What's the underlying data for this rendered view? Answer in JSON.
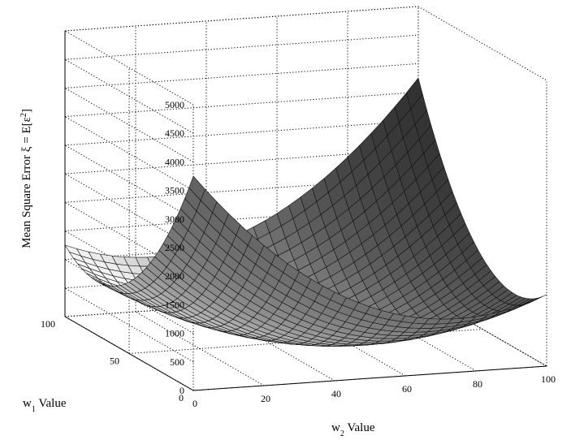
{
  "chart_data": {
    "type": "surface",
    "title": "",
    "xlabel": "w₁ Value",
    "ylabel": "w₂ Value",
    "zlabel": "Mean Square Error ξ = E[ε²]",
    "x_label_parts": {
      "base": "w",
      "sub": "1",
      "rest": " Value"
    },
    "y_label_parts": {
      "base": "w",
      "sub": "2",
      "rest": " Value"
    },
    "z_label_parts": {
      "pre": "Mean Square Error ξ = E[ε",
      "sup": "2",
      "post": "]"
    },
    "xlim": [
      0,
      100
    ],
    "ylim": [
      0,
      100
    ],
    "zlim": [
      0,
      5000
    ],
    "x_ticks": [
      "0",
      "50",
      "100"
    ],
    "y_ticks": [
      "0",
      "20",
      "40",
      "60",
      "80",
      "100"
    ],
    "z_ticks": [
      "0",
      "500",
      "1000",
      "1500",
      "2000",
      "2500",
      "3000",
      "3500",
      "4000",
      "4500",
      "5000"
    ],
    "grid": true,
    "surface": {
      "formula": "z = 0.5*((w1-50)^2 + (w2-50)^2) + 0.5*(w1-50)*(w2-50)",
      "minimum": {
        "w1": 50,
        "w2": 50,
        "z": 0
      },
      "corner_values": [
        {
          "w1": 0,
          "w2": 0,
          "z": 3750
        },
        {
          "w1": 100,
          "w2": 100,
          "z": 3750
        },
        {
          "w1": 0,
          "w2": 100,
          "z": 1250
        },
        {
          "w1": 100,
          "w2": 0,
          "z": 1250
        }
      ],
      "mesh_divisions": 30
    }
  }
}
